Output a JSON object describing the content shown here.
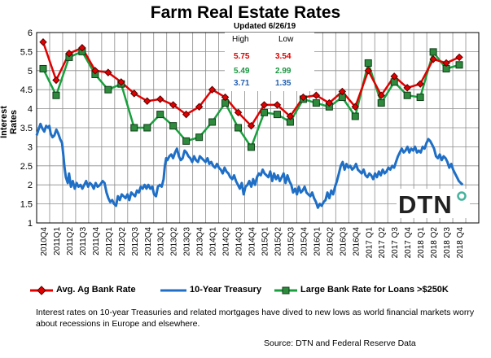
{
  "title": "Farm Real Estate Rates",
  "subtitle": "Updated 6/26/19",
  "high_low": {
    "high_label": "High",
    "low_label": "Low",
    "rows": [
      {
        "high": "5.75",
        "low": "3.54",
        "color": "#e00000"
      },
      {
        "high": "5.49",
        "low": "2.99",
        "color": "#1a9641"
      },
      {
        "high": "3.71",
        "low": "1.35",
        "color": "#1f5fb0"
      }
    ]
  },
  "logo_text": "DTN",
  "note": "Interest rates on 10-year Treasuries and related mortgages have dived to new lows as world financial markets worry about recessions in Europe and elsewhere.",
  "source": "Source: DTN and Federal Reserve Data",
  "colors": {
    "ag": "#e00000",
    "treasury": "#1f6fc6",
    "large_line": "#18a03c",
    "large_marker": "#2e8b3e",
    "grid": "#8c8c8c"
  },
  "chart_data": {
    "type": "line",
    "title": "Farm Real Estate Rates",
    "ylabel": "Interest Rates",
    "xlabel": "",
    "ylim": [
      1,
      6
    ],
    "yticks": [
      1,
      1.5,
      2,
      2.5,
      3,
      3.5,
      4,
      4.5,
      5,
      5.5,
      6
    ],
    "grid": true,
    "legend_position": "bottom",
    "categories": [
      "2010Q4",
      "2011Q1",
      "2011Q2",
      "2011Q3",
      "2011Q4",
      "2012Q1",
      "2012Q2",
      "2012Q3",
      "2012Q4",
      "2013Q1",
      "2013Q2",
      "2013Q3",
      "2013Q4",
      "2014Q1",
      "2014Q2",
      "2014Q3",
      "2014Q4",
      "2015Q1",
      "2015Q2",
      "2015Q3",
      "2015Q4",
      "2016Q1",
      "2016Q2",
      "2016Q3",
      "2016Q4",
      "2017 Q1",
      "2017 Q2",
      "2017 Q3",
      "2017 Q4",
      "2018 Q1",
      "2018 Q2",
      "2018 Q3",
      "2018 Q4"
    ],
    "series": [
      {
        "name": "Avg. Ag Bank Rate",
        "style": "line-diamond",
        "values": [
          5.75,
          4.75,
          5.45,
          5.6,
          5.0,
          4.95,
          4.7,
          4.4,
          4.2,
          4.25,
          4.1,
          3.85,
          4.05,
          4.5,
          4.3,
          3.9,
          3.55,
          4.1,
          4.1,
          3.8,
          4.3,
          4.35,
          4.15,
          4.45,
          4.05,
          5.0,
          4.35,
          4.85,
          4.55,
          4.65,
          5.3,
          5.2,
          5.35
        ]
      },
      {
        "name": "Large Bank Rate for Loans >$250K",
        "style": "line-square",
        "values": [
          5.05,
          4.35,
          5.35,
          5.5,
          4.9,
          4.5,
          4.65,
          3.5,
          3.5,
          3.85,
          3.55,
          3.15,
          3.25,
          3.65,
          4.15,
          3.5,
          2.99,
          3.9,
          3.85,
          3.65,
          4.25,
          4.15,
          4.05,
          4.3,
          3.8,
          5.2,
          4.15,
          4.7,
          4.35,
          4.3,
          5.49,
          5.05,
          5.15
        ]
      },
      {
        "name": "10-Year Treasury",
        "style": "line",
        "x_range": [
          0,
          34
        ],
        "points": [
          [
            0.0,
            3.3
          ],
          [
            0.15,
            3.45
          ],
          [
            0.3,
            3.6
          ],
          [
            0.45,
            3.48
          ],
          [
            0.6,
            3.4
          ],
          [
            0.75,
            3.55
          ],
          [
            0.9,
            3.5
          ],
          [
            1.0,
            3.55
          ],
          [
            1.1,
            3.35
          ],
          [
            1.25,
            3.25
          ],
          [
            1.4,
            3.3
          ],
          [
            1.55,
            3.45
          ],
          [
            1.7,
            3.35
          ],
          [
            1.85,
            3.2
          ],
          [
            2.0,
            3.1
          ],
          [
            2.1,
            2.8
          ],
          [
            2.2,
            2.45
          ],
          [
            2.3,
            2.2
          ],
          [
            2.45,
            2.05
          ],
          [
            2.55,
            2.3
          ],
          [
            2.7,
            1.95
          ],
          [
            2.85,
            2.1
          ],
          [
            3.0,
            1.9
          ],
          [
            3.15,
            2.05
          ],
          [
            3.3,
            1.95
          ],
          [
            3.45,
            2.0
          ],
          [
            3.6,
            1.9
          ],
          [
            3.75,
            2.0
          ],
          [
            3.9,
            2.1
          ],
          [
            4.05,
            1.95
          ],
          [
            4.2,
            2.05
          ],
          [
            4.35,
            2.0
          ],
          [
            4.5,
            1.9
          ],
          [
            4.65,
            2.05
          ],
          [
            4.8,
            1.95
          ],
          [
            5.0,
            2.0
          ],
          [
            5.2,
            2.1
          ],
          [
            5.35,
            2.05
          ],
          [
            5.5,
            1.8
          ],
          [
            5.65,
            1.65
          ],
          [
            5.8,
            1.55
          ],
          [
            5.95,
            1.6
          ],
          [
            6.1,
            1.5
          ],
          [
            6.25,
            1.45
          ],
          [
            6.4,
            1.7
          ],
          [
            6.55,
            1.6
          ],
          [
            6.7,
            1.75
          ],
          [
            6.85,
            1.7
          ],
          [
            7.0,
            1.65
          ],
          [
            7.15,
            1.75
          ],
          [
            7.3,
            1.6
          ],
          [
            7.45,
            1.8
          ],
          [
            7.6,
            1.75
          ],
          [
            7.75,
            1.7
          ],
          [
            7.9,
            1.85
          ],
          [
            8.05,
            1.8
          ],
          [
            8.2,
            1.95
          ],
          [
            8.35,
            1.9
          ],
          [
            8.5,
            2.0
          ],
          [
            8.65,
            1.9
          ],
          [
            8.8,
            2.0
          ],
          [
            8.95,
            1.9
          ],
          [
            9.1,
            1.95
          ],
          [
            9.25,
            1.75
          ],
          [
            9.4,
            1.7
          ],
          [
            9.55,
            1.95
          ],
          [
            9.7,
            2.0
          ],
          [
            9.85,
            1.95
          ],
          [
            10.0,
            2.15
          ],
          [
            10.1,
            2.5
          ],
          [
            10.2,
            2.7
          ],
          [
            10.3,
            2.65
          ],
          [
            10.45,
            2.75
          ],
          [
            10.6,
            2.8
          ],
          [
            10.75,
            2.7
          ],
          [
            10.9,
            2.85
          ],
          [
            11.05,
            2.95
          ],
          [
            11.2,
            2.75
          ],
          [
            11.35,
            2.65
          ],
          [
            11.5,
            2.7
          ],
          [
            11.65,
            2.9
          ],
          [
            11.8,
            2.85
          ],
          [
            11.95,
            2.75
          ],
          [
            12.1,
            2.7
          ],
          [
            12.25,
            2.6
          ],
          [
            12.4,
            2.75
          ],
          [
            12.55,
            2.65
          ],
          [
            12.7,
            2.6
          ],
          [
            12.85,
            2.75
          ],
          [
            13.0,
            2.7
          ],
          [
            13.15,
            2.65
          ],
          [
            13.3,
            2.6
          ],
          [
            13.45,
            2.7
          ],
          [
            13.6,
            2.55
          ],
          [
            13.75,
            2.6
          ],
          [
            13.9,
            2.5
          ],
          [
            14.05,
            2.45
          ],
          [
            14.2,
            2.55
          ],
          [
            14.35,
            2.45
          ],
          [
            14.5,
            2.4
          ],
          [
            14.65,
            2.3
          ],
          [
            14.8,
            2.45
          ],
          [
            14.95,
            2.35
          ],
          [
            15.1,
            2.3
          ],
          [
            15.25,
            2.2
          ],
          [
            15.4,
            2.15
          ],
          [
            15.55,
            2.25
          ],
          [
            15.7,
            2.1
          ],
          [
            15.85,
            2.0
          ],
          [
            16.0,
            1.9
          ],
          [
            16.15,
            2.05
          ],
          [
            16.3,
            1.75
          ],
          [
            16.45,
            1.95
          ],
          [
            16.6,
            2.0
          ],
          [
            16.75,
            2.1
          ],
          [
            16.9,
            1.95
          ],
          [
            17.05,
            2.15
          ],
          [
            17.2,
            2.0
          ],
          [
            17.35,
            2.2
          ],
          [
            17.5,
            2.3
          ],
          [
            17.65,
            2.25
          ],
          [
            17.8,
            2.4
          ],
          [
            17.95,
            2.3
          ],
          [
            18.1,
            2.25
          ],
          [
            18.25,
            2.2
          ],
          [
            18.4,
            2.35
          ],
          [
            18.55,
            2.1
          ],
          [
            18.7,
            2.3
          ],
          [
            18.85,
            2.15
          ],
          [
            19.0,
            2.25
          ],
          [
            19.15,
            2.1
          ],
          [
            19.3,
            2.2
          ],
          [
            19.45,
            2.3
          ],
          [
            19.6,
            2.05
          ],
          [
            19.75,
            2.25
          ],
          [
            19.9,
            2.1
          ],
          [
            20.05,
            2.0
          ],
          [
            20.2,
            1.8
          ],
          [
            20.35,
            1.9
          ],
          [
            20.5,
            1.75
          ],
          [
            20.65,
            1.95
          ],
          [
            20.8,
            1.8
          ],
          [
            20.95,
            1.85
          ],
          [
            21.1,
            1.95
          ],
          [
            21.25,
            1.8
          ],
          [
            21.4,
            1.75
          ],
          [
            21.55,
            1.7
          ],
          [
            21.7,
            1.8
          ],
          [
            21.85,
            1.65
          ],
          [
            22.0,
            1.55
          ],
          [
            22.15,
            1.4
          ],
          [
            22.3,
            1.5
          ],
          [
            22.45,
            1.45
          ],
          [
            22.6,
            1.55
          ],
          [
            22.75,
            1.6
          ],
          [
            22.9,
            1.8
          ],
          [
            23.05,
            1.65
          ],
          [
            23.2,
            1.85
          ],
          [
            23.35,
            1.75
          ],
          [
            23.5,
            1.95
          ],
          [
            23.65,
            2.1
          ],
          [
            23.8,
            2.3
          ],
          [
            23.95,
            2.5
          ],
          [
            24.1,
            2.6
          ],
          [
            24.25,
            2.4
          ],
          [
            24.4,
            2.55
          ],
          [
            24.55,
            2.45
          ],
          [
            24.7,
            2.5
          ],
          [
            24.85,
            2.4
          ],
          [
            25.0,
            2.45
          ],
          [
            25.15,
            2.55
          ],
          [
            25.3,
            2.4
          ],
          [
            25.45,
            2.35
          ],
          [
            25.6,
            2.3
          ],
          [
            25.75,
            2.4
          ],
          [
            25.9,
            2.25
          ],
          [
            26.05,
            2.2
          ],
          [
            26.2,
            2.3
          ],
          [
            26.35,
            2.25
          ],
          [
            26.5,
            2.15
          ],
          [
            26.65,
            2.3
          ],
          [
            26.8,
            2.2
          ],
          [
            26.95,
            2.35
          ],
          [
            27.1,
            2.25
          ],
          [
            27.25,
            2.4
          ],
          [
            27.4,
            2.3
          ],
          [
            27.55,
            2.35
          ],
          [
            27.7,
            2.45
          ],
          [
            27.85,
            2.4
          ],
          [
            28.0,
            2.5
          ],
          [
            28.15,
            2.45
          ],
          [
            28.3,
            2.6
          ],
          [
            28.45,
            2.75
          ],
          [
            28.6,
            2.85
          ],
          [
            28.75,
            2.95
          ],
          [
            28.9,
            2.85
          ],
          [
            29.05,
            2.9
          ],
          [
            29.2,
            3.0
          ],
          [
            29.35,
            2.85
          ],
          [
            29.5,
            2.95
          ],
          [
            29.65,
            2.9
          ],
          [
            29.8,
            3.0
          ],
          [
            29.95,
            2.85
          ],
          [
            30.1,
            2.9
          ],
          [
            30.25,
            2.85
          ],
          [
            30.4,
            3.0
          ],
          [
            30.55,
            2.95
          ],
          [
            30.7,
            3.1
          ],
          [
            30.85,
            3.2
          ],
          [
            31.0,
            3.15
          ],
          [
            31.15,
            3.05
          ],
          [
            31.3,
            2.95
          ],
          [
            31.45,
            2.75
          ],
          [
            31.6,
            2.7
          ],
          [
            31.75,
            2.8
          ],
          [
            31.9,
            2.65
          ],
          [
            32.05,
            2.75
          ],
          [
            32.2,
            2.7
          ],
          [
            32.35,
            2.6
          ],
          [
            32.5,
            2.45
          ],
          [
            32.65,
            2.55
          ],
          [
            32.8,
            2.4
          ],
          [
            32.95,
            2.3
          ],
          [
            33.1,
            2.2
          ],
          [
            33.25,
            2.1
          ],
          [
            33.4,
            2.05
          ],
          [
            33.55,
            2.0
          ]
        ]
      }
    ]
  }
}
